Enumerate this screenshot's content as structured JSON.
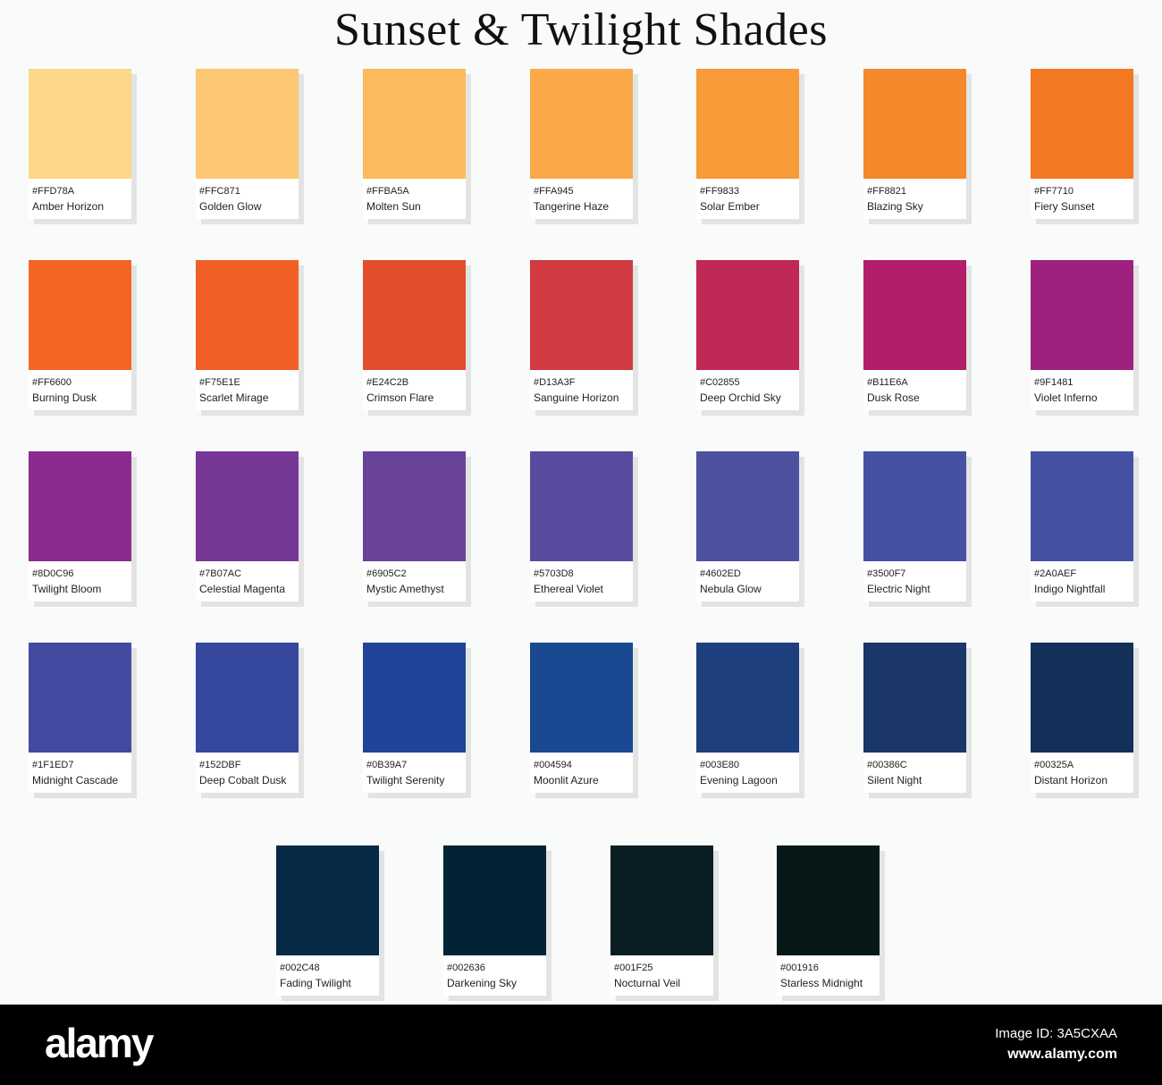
{
  "title": "Sunset & Twilight Shades",
  "swatches": [
    {
      "hex": "#FFD78A",
      "name": "Amber Horizon",
      "fill": "#FFD78A"
    },
    {
      "hex": "#FFC871",
      "name": "Golden Glow",
      "fill": "#FDC873"
    },
    {
      "hex": "#FFBA5A",
      "name": "Molten Sun",
      "fill": "#FCBA5E"
    },
    {
      "hex": "#FFA945",
      "name": "Tangerine Haze",
      "fill": "#F9A948"
    },
    {
      "hex": "#FF9833",
      "name": "Solar Ember",
      "fill": "#F89A38"
    },
    {
      "hex": "#FF8821",
      "name": "Blazing Sky",
      "fill": "#F5882A"
    },
    {
      "hex": "#FF7710",
      "name": "Fiery Sunset",
      "fill": "#F27822"
    },
    {
      "hex": "#FF6600",
      "name": "Burning Dusk",
      "fill": "#F26522"
    },
    {
      "hex": "#F75E1E",
      "name": "Scarlet Mirage",
      "fill": "#F06025"
    },
    {
      "hex": "#E24C2B",
      "name": "Crimson Flare",
      "fill": "#E04E2C"
    },
    {
      "hex": "#D13A3F",
      "name": "Sanguine Horizon",
      "fill": "#D13A40"
    },
    {
      "hex": "#C02855",
      "name": "Deep Orchid Sky",
      "fill": "#C02855"
    },
    {
      "hex": "#B11E6A",
      "name": "Dusk Rose",
      "fill": "#B31E6A"
    },
    {
      "hex": "#9F1481",
      "name": "Violet Inferno",
      "fill": "#9E2180"
    },
    {
      "hex": "#8D0C96",
      "name": "Twilight Bloom",
      "fill": "#8B2A8F"
    },
    {
      "hex": "#7B07AC",
      "name": "Celestial Magenta",
      "fill": "#773797"
    },
    {
      "hex": "#6905C2",
      "name": "Mystic Amethyst",
      "fill": "#69429A"
    },
    {
      "hex": "#5703D8",
      "name": "Ethereal Violet",
      "fill": "#5A4A9F"
    },
    {
      "hex": "#4602ED",
      "name": "Nebula Glow",
      "fill": "#4C51A0"
    },
    {
      "hex": "#3500F7",
      "name": "Electric Night",
      "fill": "#4651A3"
    },
    {
      "hex": "#2A0AEF",
      "name": "Indigo Nightfall",
      "fill": "#4451A3"
    },
    {
      "hex": "#1F1ED7",
      "name": "Midnight Cascade",
      "fill": "#434AA0"
    },
    {
      "hex": "#152DBF",
      "name": "Deep Cobalt Dusk",
      "fill": "#36489E"
    },
    {
      "hex": "#0B39A7",
      "name": "Twilight Serenity",
      "fill": "#1F449A"
    },
    {
      "hex": "#004594",
      "name": "Moonlit Azure",
      "fill": "#1A4891"
    },
    {
      "hex": "#003E80",
      "name": "Evening Lagoon",
      "fill": "#1D3F7E"
    },
    {
      "hex": "#00386C",
      "name": "Silent Night",
      "fill": "#1B3668"
    },
    {
      "hex": "#00325A",
      "name": "Distant Horizon",
      "fill": "#143058"
    },
    {
      "hex": "#002C48",
      "name": "Fading Twilight",
      "fill": "#062946"
    },
    {
      "hex": "#002636",
      "name": "Darkening Sky",
      "fill": "#012334"
    },
    {
      "hex": "#001F25",
      "name": "Nocturnal Veil",
      "fill": "#0A1D22"
    },
    {
      "hex": "#001916",
      "name": "Starless Midnight",
      "fill": "#061818"
    }
  ],
  "footer": {
    "logo": "alamy",
    "image_id": "Image ID: 3A5CXAA",
    "url": "www.alamy.com"
  }
}
